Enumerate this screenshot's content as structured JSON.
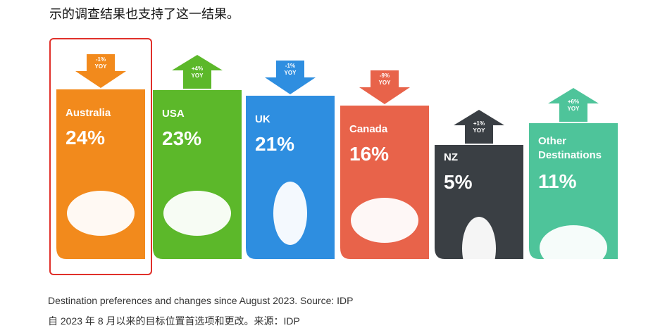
{
  "intro": "示的调查结果也支持了这一结果。",
  "infographic": {
    "cards": [
      {
        "name": "Australia",
        "share": "24%",
        "change": "-1%",
        "period": "YOY",
        "color": "#f28a1c",
        "arrow": "down"
      },
      {
        "name": "USA",
        "share": "23%",
        "change": "+4%",
        "period": "YOY",
        "color": "#5cb82a",
        "arrow": "up"
      },
      {
        "name": "UK",
        "share": "21%",
        "change": "-1%",
        "period": "YOY",
        "color": "#2e8ee0",
        "arrow": "down"
      },
      {
        "name": "Canada",
        "share": "16%",
        "change": "-9%",
        "period": "YOY",
        "color": "#e8634a",
        "arrow": "down"
      },
      {
        "name": "NZ",
        "share": "5%",
        "change": "+1%",
        "period": "YOY",
        "color": "#3a3f44",
        "arrow": "up"
      },
      {
        "name": "Other Destinations",
        "share": "11%",
        "change": "+6%",
        "period": "YOY",
        "color": "#4ec49a",
        "arrow": "up"
      }
    ]
  },
  "caption": {
    "english": "Destination preferences and changes since August 2023. Source: IDP",
    "chinese": "自 2023 年 8 月以来的目标位置首选项和更改。来源：IDP"
  }
}
